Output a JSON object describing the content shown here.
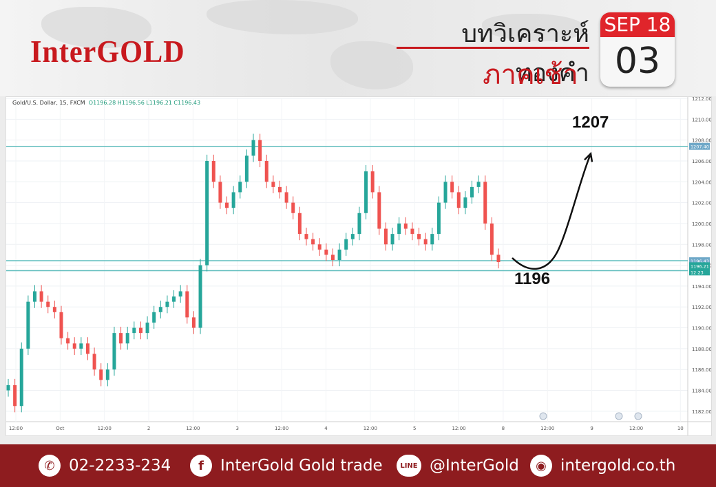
{
  "header": {
    "logo": "InterGOLD",
    "title": "บทวิเคราะห์ทองคำ",
    "subtitle": "ภาคเช้า",
    "calendar_month": "SEP 18",
    "calendar_day": "03"
  },
  "chart_legend": {
    "symbol": "Gold/U.S. Dollar, 15, FXCM",
    "ohlc": "O1196.28 H1196.56 L1196.21 C1196.43"
  },
  "chart_data": {
    "type": "line",
    "title": "Gold/U.S. Dollar, 15, FXCM",
    "ylim": [
      1181,
      1212
    ],
    "x_ticks": [
      "12:00",
      "Oct",
      "12:00",
      "2",
      "12:00",
      "3",
      "12:00",
      "4",
      "12:00",
      "5",
      "12:00",
      "8",
      "12:00",
      "9",
      "12:00",
      "10"
    ],
    "y_ticks": [
      "1212.00",
      "1210.00",
      "1208.00",
      "1206.00",
      "1204.00",
      "1202.00",
      "1200.00",
      "1198.00",
      "1196.00",
      "1194.00",
      "1192.00",
      "1190.00",
      "1188.00",
      "1186.00",
      "1184.00",
      "1182.00"
    ],
    "series": [
      {
        "values": [
          1184.5,
          1182.5,
          1188.0,
          1192.5,
          1193.5,
          1192.5,
          1192.0,
          1191.5,
          1189.0,
          1188.5,
          1188.0,
          1188.5,
          1187.5,
          1186.0,
          1185.0,
          1186.0,
          1189.5,
          1188.5,
          1189.5,
          1190.0,
          1189.5,
          1190.5,
          1191.5,
          1192.0,
          1192.5,
          1193.0,
          1193.5,
          1191.0,
          1190.0,
          1196.0,
          1206.0,
          1204.0,
          1202.0,
          1201.5,
          1203.0,
          1204.0,
          1206.5,
          1208.0,
          1206.0,
          1204.0,
          1203.5,
          1203.0,
          1202.0,
          1201.0,
          1199.0,
          1198.5,
          1198.0,
          1197.5,
          1197.0,
          1196.5,
          1197.5,
          1198.5,
          1199.0,
          1201.0,
          1205.0,
          1203.0,
          1199.5,
          1198.0,
          1199.0,
          1200.0,
          1199.5,
          1199.0,
          1198.5,
          1198.0,
          1199.0,
          1202.0,
          1204.0,
          1203.0,
          1201.5,
          1202.5,
          1203.5,
          1204.0,
          1200.0,
          1197.0,
          1196.3
        ],
        "color": "#26a69a"
      }
    ],
    "candle_up_color": "#26a69a",
    "candle_down_color": "#ef5350",
    "levels": [
      {
        "label": "1207.40",
        "value": 1207.4
      },
      {
        "label": "1196.43",
        "value": 1196.43
      },
      {
        "label": "1195.48",
        "value": 1195.48
      }
    ],
    "price_tags": [
      "1196.21",
      "12:23"
    ],
    "annotations": [
      {
        "text": "1207",
        "value": 1207
      },
      {
        "text": "1196",
        "value": 1196
      }
    ]
  },
  "footer": {
    "phone": "02-2233-234",
    "facebook": "InterGold Gold trade",
    "line": "@InterGold",
    "website": "intergold.co.th",
    "phone_icon": "phone-icon",
    "facebook_icon": "facebook-icon",
    "line_icon": "line-icon",
    "web_icon": "globe-icon",
    "line_icon_text": "LINE",
    "facebook_icon_text": "f"
  }
}
